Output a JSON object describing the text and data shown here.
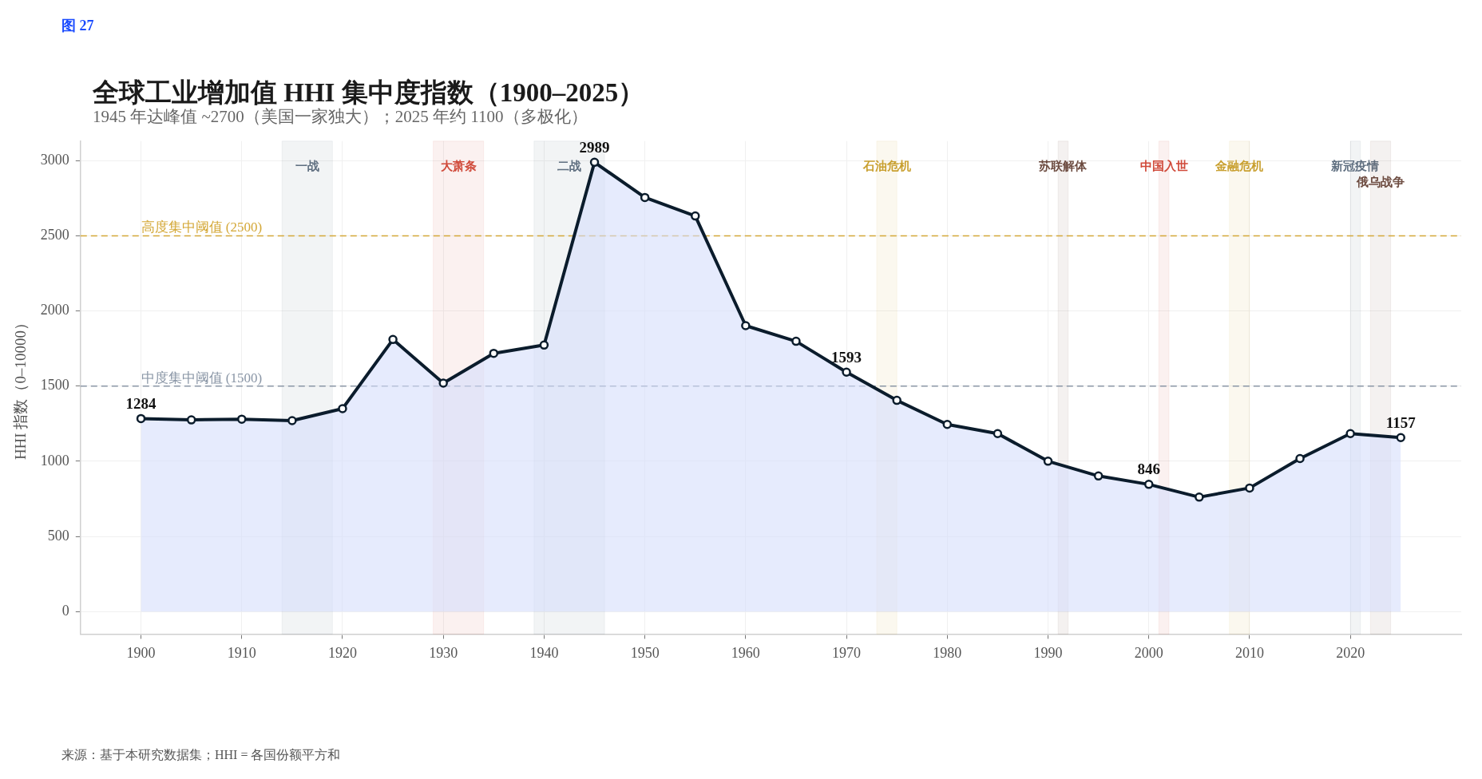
{
  "chart_data": {
    "type": "area",
    "title": "全球工业增加值 HHI 集中度指数（1900–2025）",
    "subtitle": "1945 年达峰值 ~2700（美国一家独大）；2025 年约 1100（多极化）",
    "ylabel": "HHI 指数（0–10000）",
    "annotations": [
      "图 27",
      "来源：基于本研究数据集；HHI = 各国份额平方和"
    ],
    "x": [
      1900,
      1905,
      1910,
      1915,
      1920,
      1925,
      1930,
      1935,
      1940,
      1945,
      1950,
      1955,
      1960,
      1965,
      1970,
      1975,
      1980,
      1985,
      1990,
      1995,
      2000,
      2005,
      2010,
      2015,
      2020,
      2025
    ],
    "series": [
      {
        "color": "#0b1c2c",
        "values": [
          1284,
          1275,
          1280,
          1270,
          1350,
          1810,
          1520,
          1718,
          1773,
          2989,
          2755,
          2632,
          1902,
          1798,
          1593,
          1405,
          1245,
          1184,
          1000,
          902,
          846,
          761,
          822,
          1018,
          1184,
          1157
        ],
        "value_labels": [
          "1284",
          null,
          null,
          null,
          null,
          null,
          null,
          null,
          null,
          "2989",
          null,
          null,
          null,
          null,
          "1593",
          null,
          null,
          null,
          null,
          null,
          "846",
          null,
          null,
          null,
          null,
          "1157"
        ]
      }
    ],
    "xlim": [
      1894,
      2031
    ],
    "ylim": [
      -150,
      3130
    ],
    "xticks": [
      1900,
      1910,
      1920,
      1930,
      1940,
      1950,
      1960,
      1970,
      1980,
      1990,
      2000,
      2010,
      2020
    ],
    "yticks": [
      0,
      500,
      1000,
      1500,
      2000,
      2500,
      3000
    ],
    "ref_lines": [
      {
        "axis": "y",
        "value": 2500,
        "label": "高度集中阈值 (2500)",
        "color": "#d4a838",
        "line_style": "dashed"
      },
      {
        "axis": "y",
        "value": 1500,
        "label": "中度集中阈值 (1500)",
        "color": "#8a96a6",
        "line_style": "dashed"
      }
    ],
    "bands": [
      {
        "axis": "x",
        "from": 1914,
        "to": 1919,
        "label": "一战",
        "color": "#5f6f80"
      },
      {
        "axis": "x",
        "from": 1929,
        "to": 1934,
        "label": "大萧条",
        "color": "#d04a3a"
      },
      {
        "axis": "x",
        "from": 1939,
        "to": 1946,
        "label": "二战",
        "color": "#5f6f80"
      },
      {
        "axis": "x",
        "from": 1973,
        "to": 1975,
        "label": "石油危机",
        "color": "#c9a030"
      },
      {
        "axis": "x",
        "from": 1991,
        "to": 1992,
        "label": "苏联解体",
        "color": "#6d4c41"
      },
      {
        "axis": "x",
        "from": 2001,
        "to": 2002,
        "label": "中国入世",
        "color": "#d04a3a"
      },
      {
        "axis": "x",
        "from": 2008,
        "to": 2010,
        "label": "金融危机",
        "color": "#c9a030"
      },
      {
        "axis": "x",
        "from": 2020,
        "to": 2021,
        "label": "新冠疫情",
        "color": "#5f6f80"
      },
      {
        "axis": "x",
        "from": 2022,
        "to": 2024,
        "label": "俄乌战争",
        "color": "#6d4c41"
      }
    ],
    "grid": true,
    "legend": false,
    "marker": "circle",
    "line_style": "solid"
  }
}
